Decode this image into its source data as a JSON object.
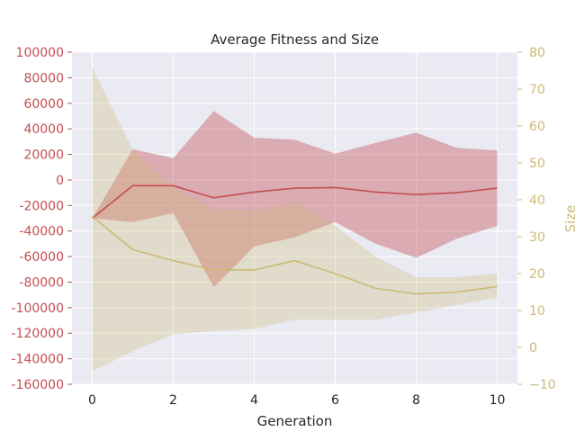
{
  "chart_data": {
    "type": "line",
    "title": "Average Fitness and Size",
    "xlabel": "Generation",
    "ylabel_left": "",
    "ylabel_right": "Size",
    "x": [
      0,
      1,
      2,
      3,
      4,
      5,
      6,
      7,
      8,
      9,
      10
    ],
    "xlim": [
      -0.5,
      10.5
    ],
    "xticks": [
      0,
      2,
      4,
      6,
      8,
      10
    ],
    "ylim_left": [
      -160000,
      100000
    ],
    "yticks_left": [
      100000,
      80000,
      60000,
      40000,
      20000,
      0,
      -20000,
      -40000,
      -60000,
      -80000,
      -100000,
      -120000,
      -140000,
      -160000
    ],
    "ylim_right": [
      -10,
      80
    ],
    "yticks_right": [
      80,
      70,
      60,
      50,
      40,
      30,
      20,
      10,
      0,
      -10
    ],
    "grid": true,
    "series": [
      {
        "name": "Fitness",
        "axis": "left",
        "color": "#c44e52",
        "values": [
          -30000,
          -4500,
          -4500,
          -14000,
          -9500,
          -6500,
          -6000,
          -9500,
          -11500,
          -10000,
          -6500
        ],
        "band_upper": [
          -30000,
          24000,
          17000,
          54000,
          33000,
          31500,
          20500,
          29000,
          37000,
          25000,
          23000
        ],
        "band_lower": [
          -30000,
          -33000,
          -26000,
          -84000,
          -52000,
          -45000,
          -33000,
          -50000,
          -61000,
          -46000,
          -36000
        ]
      },
      {
        "name": "Size",
        "axis": "right",
        "color": "#ccb974",
        "values": [
          35.5,
          26.5,
          23.5,
          21.0,
          21.0,
          23.5,
          20.0,
          16.0,
          14.5,
          15.0,
          16.5
        ],
        "band_upper": [
          76,
          53.5,
          43.5,
          37.5,
          37.0,
          39.5,
          33.0,
          24.5,
          19.0,
          19.0,
          20.0
        ],
        "band_lower": [
          -6.5,
          -1.0,
          3.5,
          4.5,
          5.0,
          7.5,
          7.5,
          7.5,
          9.5,
          11.5,
          13.5
        ]
      }
    ]
  }
}
